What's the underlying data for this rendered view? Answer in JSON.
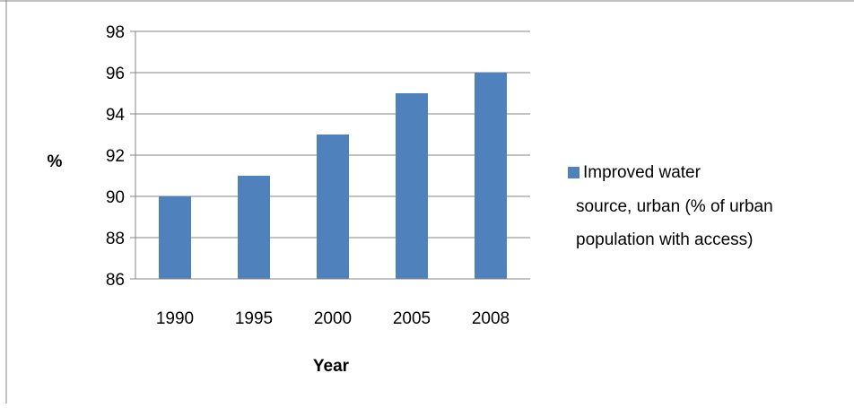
{
  "chart_data": {
    "type": "bar",
    "title": "",
    "xlabel": "Year",
    "ylabel": "%",
    "categories": [
      "1990",
      "1995",
      "2000",
      "2005",
      "2008"
    ],
    "series": [
      {
        "name": "Improved water source, urban (% of urban population with access)",
        "values": [
          90,
          91,
          93,
          95,
          96
        ]
      }
    ],
    "ylim": [
      86,
      98
    ],
    "yticks": [
      "86",
      "88",
      "90",
      "92",
      "94",
      "96",
      "98"
    ],
    "grid": true,
    "legend_position": "right",
    "bar_color": "#4f81bd",
    "grid_color": "#868686",
    "legend": {
      "lines": [
        "Improved water",
        "source, urban (% of urban",
        "population with access)"
      ]
    }
  }
}
